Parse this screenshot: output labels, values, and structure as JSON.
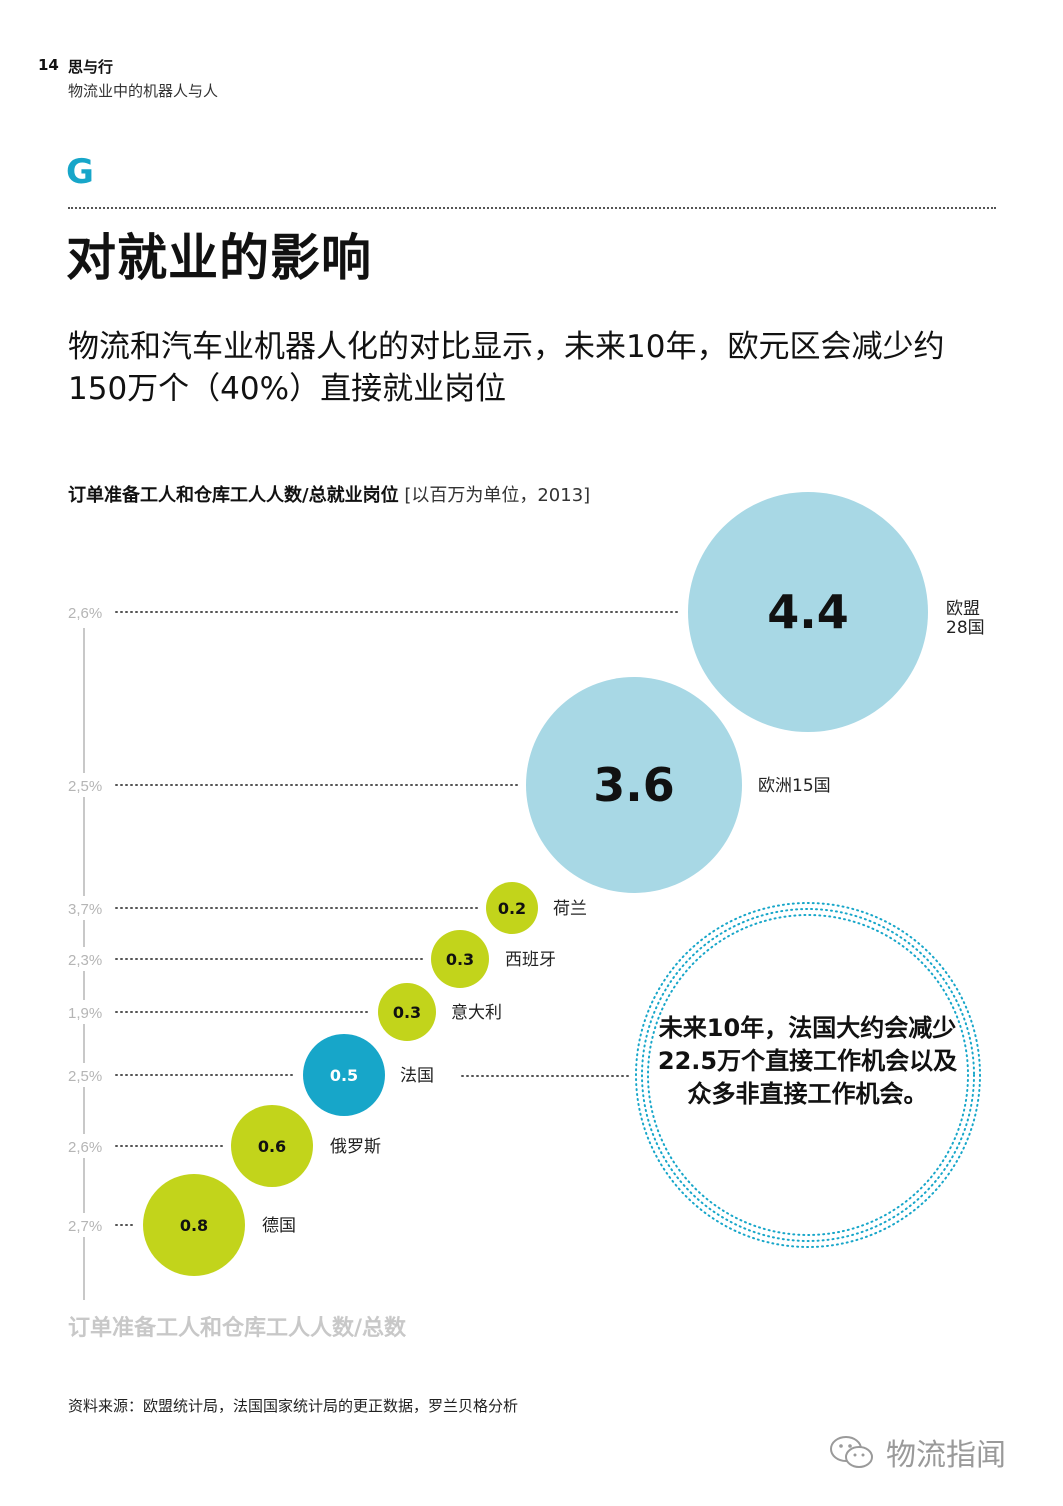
{
  "header": {
    "page_number": "14",
    "section_name": "思与行",
    "subtitle": "物流业中的机器人与人"
  },
  "section": {
    "letter": "G",
    "title": "对就业的影响",
    "lead": "物流和汽车业机器人化的对比显示，未来10年，欧元区会减少约150万个（40%）直接就业岗位"
  },
  "chart_title": {
    "bold": "订单准备工人和仓库工人人数/总就业岗位",
    "light": "[以百万为单位，2013]"
  },
  "chart_data": {
    "type": "scatter",
    "title": "订单准备工人和仓库工人人数/总就业岗位",
    "xlabel": "订单准备工人和仓库工人人数/总数",
    "unit_note": "以百万为单位，2013",
    "points": [
      {
        "label": "德国",
        "value": 0.8,
        "value_label": "0.8",
        "share_label": "2,7%",
        "color": "#c2d41b",
        "text_color": "#111111"
      },
      {
        "label": "俄罗斯",
        "value": 0.6,
        "value_label": "0.6",
        "share_label": "2,6%",
        "color": "#c2d41b",
        "text_color": "#111111"
      },
      {
        "label": "法国",
        "value": 0.5,
        "value_label": "0.5",
        "share_label": "2,5%",
        "color": "#17a6c9",
        "text_color": "#ffffff"
      },
      {
        "label": "意大利",
        "value": 0.3,
        "value_label": "0.3",
        "share_label": "1,9%",
        "color": "#c2d41b",
        "text_color": "#111111"
      },
      {
        "label": "西班牙",
        "value": 0.3,
        "value_label": "0.3",
        "share_label": "2,3%",
        "color": "#c2d41b",
        "text_color": "#111111"
      },
      {
        "label": "荷兰",
        "value": 0.2,
        "value_label": "0.2",
        "share_label": "3,7%",
        "color": "#c2d41b",
        "text_color": "#111111"
      },
      {
        "label": "欧洲15国",
        "value": 3.6,
        "value_label": "3.6",
        "share_label": "2,5%",
        "color": "#a8d8e5",
        "text_color": "#111111"
      },
      {
        "label": "欧盟28国",
        "value": 4.4,
        "value_label": "4.4",
        "share_label": "2,6%",
        "color": "#a8d8e5",
        "text_color": "#111111"
      }
    ]
  },
  "callout": {
    "text": "未来10年，法国大约会减少22.5万个直接工作机会以及众多非直接工作机会。"
  },
  "source": "资料来源：欧盟统计局，法国国家统计局的更正数据，罗兰贝格分析",
  "watermark": {
    "text": "物流指闻",
    "icon": "wechat-icon"
  },
  "colors": {
    "accent": "#17a6c9",
    "green": "#c2d41b",
    "light_blue": "#a8d8e5",
    "axis_gray": "#c8c8c8"
  }
}
